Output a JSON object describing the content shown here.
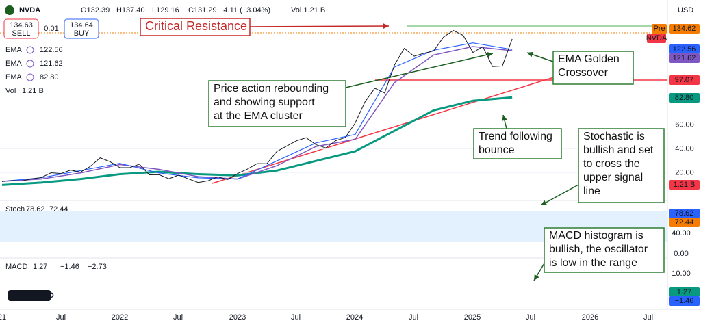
{
  "header": {
    "symbol": "NVDA",
    "open": "O132.39",
    "high": "H137.40",
    "low": "L129.16",
    "close": "C131.29",
    "change": "−4.11 (−3.04%)",
    "volume": "Vol 1.21 B"
  },
  "trade": {
    "sell_price": "134.63",
    "sell_label": "SELL",
    "spread": "0.01",
    "buy_price": "134.64",
    "buy_label": "BUY"
  },
  "indicators": [
    {
      "name": "EMA",
      "value": "122.56"
    },
    {
      "name": "EMA",
      "value": "121.62"
    },
    {
      "name": "EMA",
      "value": "82.80"
    }
  ],
  "volume_legend": {
    "name": "Vol",
    "value": "1.21 B"
  },
  "annotations": [
    {
      "lines": [
        "Critical Resistance"
      ]
    },
    {
      "lines": [
        "EMA Golden",
        "Crossover"
      ]
    },
    {
      "lines": [
        "Price action rebounding",
        "and showing support",
        "at the EMA cluster"
      ]
    },
    {
      "lines": [
        "Trend following",
        "bounce"
      ]
    },
    {
      "lines": [
        "Stochastic is",
        "bullish and set",
        "to cross the",
        "upper signal",
        "line"
      ]
    },
    {
      "lines": [
        "MACD histogram is",
        "bullish, the oscillator",
        "is low in the range"
      ]
    }
  ],
  "price_axis": {
    "currency": "USD",
    "ticks": [
      {
        "value": 20,
        "label": "20.00"
      },
      {
        "value": 40,
        "label": "40.00"
      },
      {
        "value": 60,
        "label": "60.00"
      }
    ],
    "badges": {
      "pre": "Pre",
      "pre_price": "134.62",
      "symbol": "NVDA",
      "ema1": "122.56",
      "ema2": "121.62",
      "level": "97.07",
      "ema3": "82.80",
      "volume": "1.21 B"
    }
  },
  "time_axis": {
    "labels": [
      "21",
      "Jul",
      "2022",
      "Jul",
      "2023",
      "Jul",
      "2024",
      "Jul",
      "2025",
      "Jul",
      "2026",
      "Jul"
    ]
  },
  "stoch": {
    "name": "Stoch",
    "k": "78.62",
    "d": "72.44",
    "ticks": [
      {
        "value": 40,
        "label": "40.00"
      },
      {
        "value": 0,
        "label": "0.00"
      }
    ],
    "badges": [
      "78.62",
      "72.44"
    ]
  },
  "macd": {
    "name": "MACD",
    "values": [
      "1.27",
      "−1.46",
      "−2.73"
    ],
    "ticks": [
      "10.00"
    ],
    "badges": [
      "1.27",
      "−1.46"
    ]
  },
  "logo": "PRO",
  "price_chart": {
    "close": [
      13.0,
      13.7,
      13.3,
      15.1,
      16.2,
      20.2,
      19.5,
      22.4,
      20.7,
      25.5,
      32.6,
      29.4,
      24.5,
      24.4,
      27.3,
      18.5,
      18.6,
      15.2,
      18.2,
      15.1,
      12.1,
      13.5,
      16.9,
      14.6,
      19.5,
      23.2,
      27.8,
      27.7,
      37.8,
      42.3,
      46.7,
      49.3,
      43.5,
      40.8,
      46.8,
      49.5,
      61.5,
      79.1,
      90.4,
      86.4,
      109.6,
      123.5,
      117.0,
      119.4,
      121.4,
      132.8,
      138.3,
      134.3,
      120.1,
      124.9,
      108.4,
      108.9,
      131.3
    ],
    "ema_fast": [
      13,
      16,
      22,
      28,
      20,
      16,
      15,
      30,
      45,
      52,
      108,
      122,
      128,
      122.56
    ],
    "ema_mid": [
      13,
      15,
      20,
      27,
      23,
      17,
      15,
      26,
      42,
      48,
      95,
      118,
      125,
      121.62
    ],
    "ema_slow": [
      10,
      12,
      15,
      19,
      21,
      19,
      18,
      22,
      30,
      38,
      55,
      72,
      80,
      82.8
    ]
  }
}
